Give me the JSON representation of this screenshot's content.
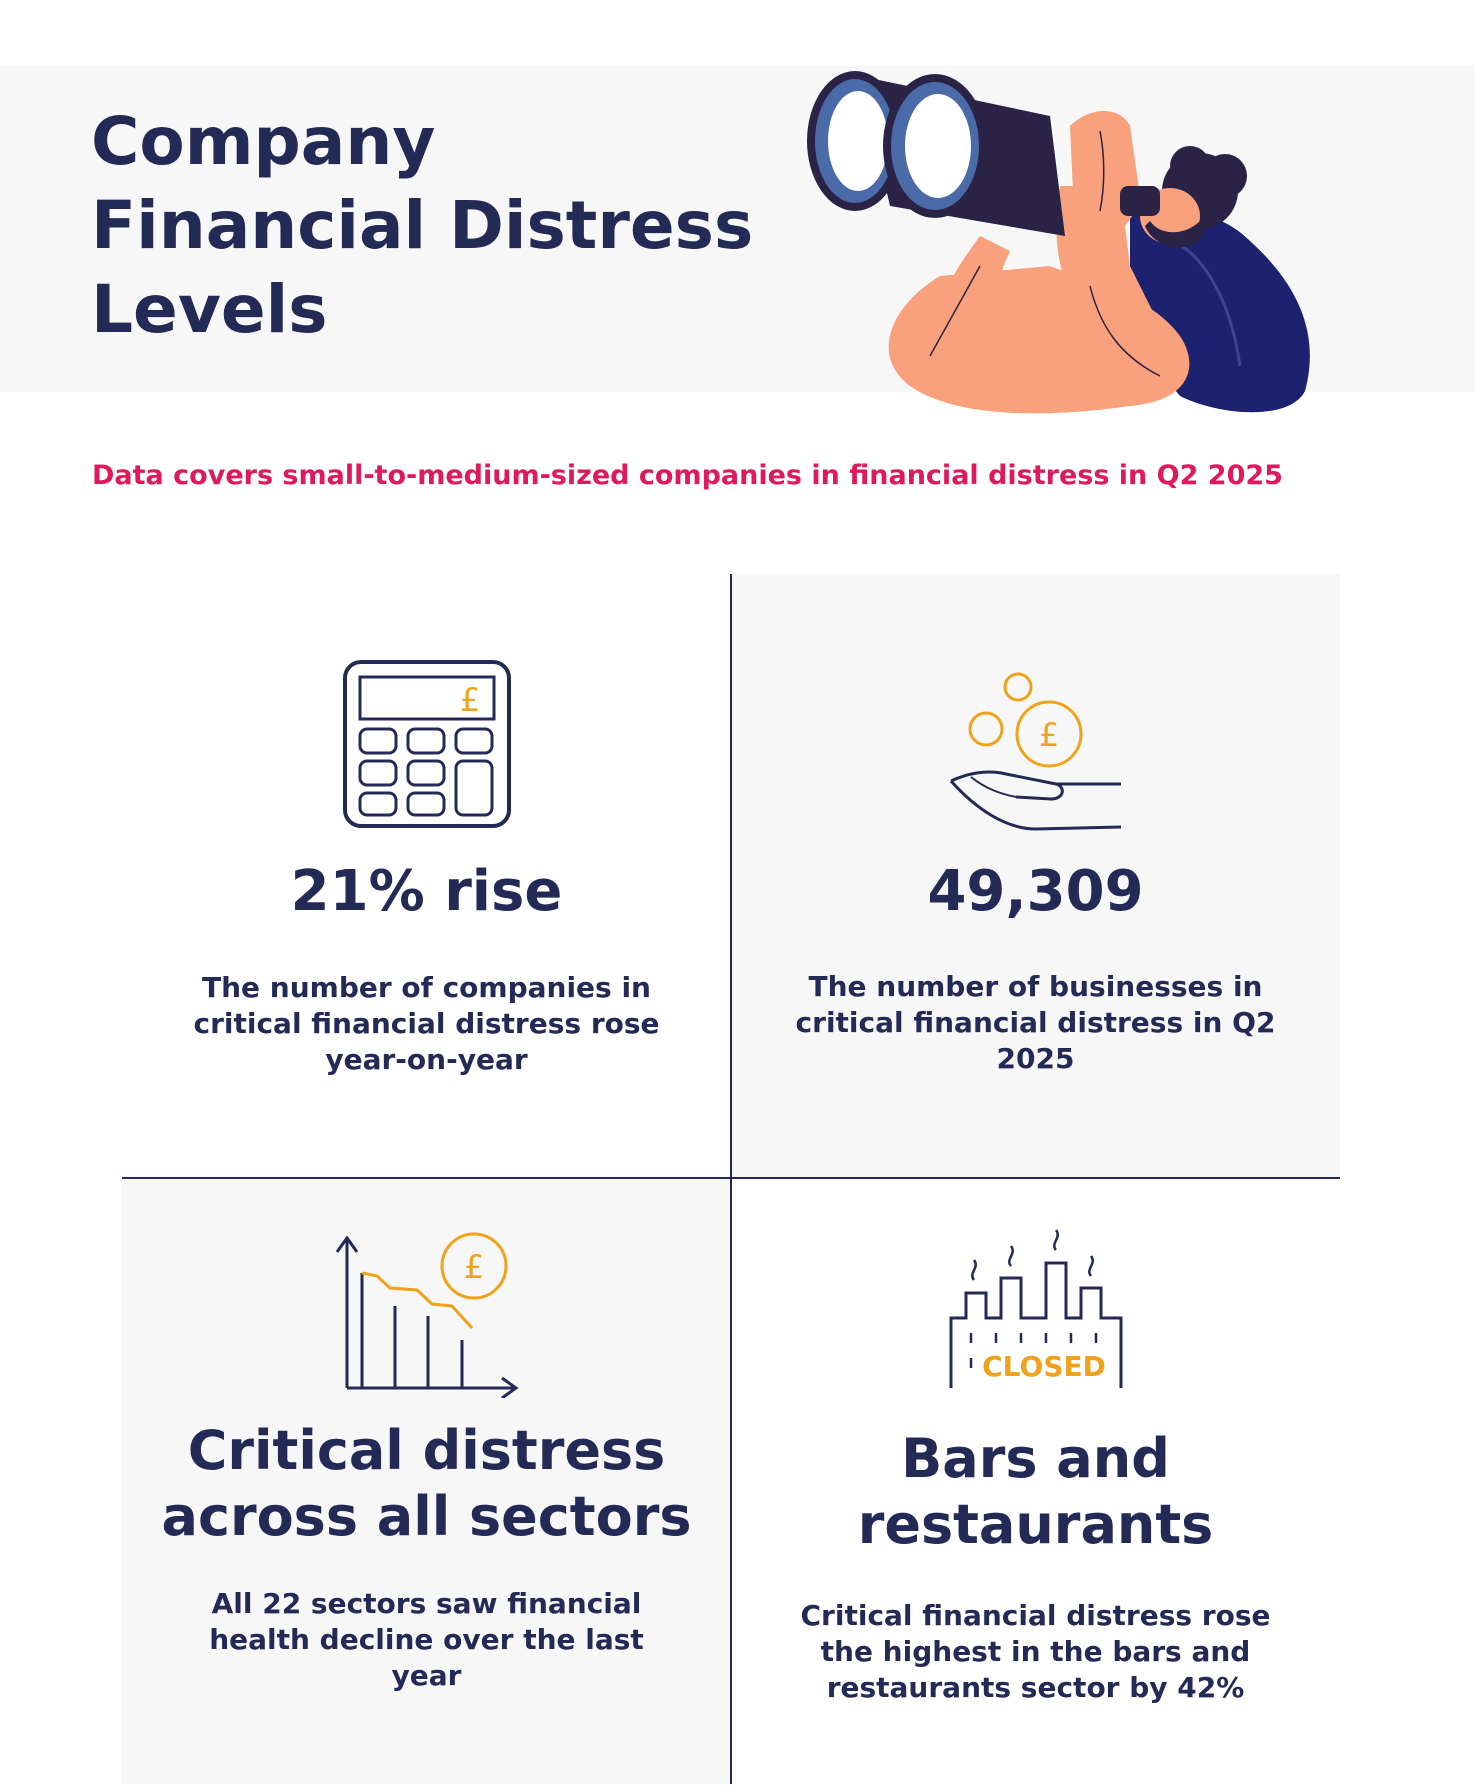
{
  "header": {
    "title_lines": [
      "Company",
      "Financial Distress",
      "Levels"
    ]
  },
  "subtitle": "Data covers small-to-medium-sized companies in financial distress in Q2 2025",
  "cards": [
    {
      "stat": "21% rise",
      "description": "The number of companies in critical financial distress rose year-on-year",
      "icon": "calculator-icon"
    },
    {
      "stat": "49,309",
      "description": "The number of businesses in critical financial distress in Q2 2025",
      "icon": "hand-coins-icon"
    },
    {
      "stat_lines": [
        "Critical distress",
        "across all sectors"
      ],
      "description": "All 22 sectors saw financial health decline over the last year",
      "icon": "declining-chart-icon"
    },
    {
      "stat_lines": [
        "Bars and",
        "restaurants"
      ],
      "description": "Critical financial distress rose the highest in the bars and restaurants sector by 42%",
      "icon": "closed-factory-icon",
      "icon_label": "CLOSED"
    }
  ],
  "icon_glyph": "£",
  "colors": {
    "navy": "#232a55",
    "pink": "#e0195a",
    "orange": "#f0a21b",
    "skin": "#f9a07c",
    "panel": "#f7f7f7"
  }
}
